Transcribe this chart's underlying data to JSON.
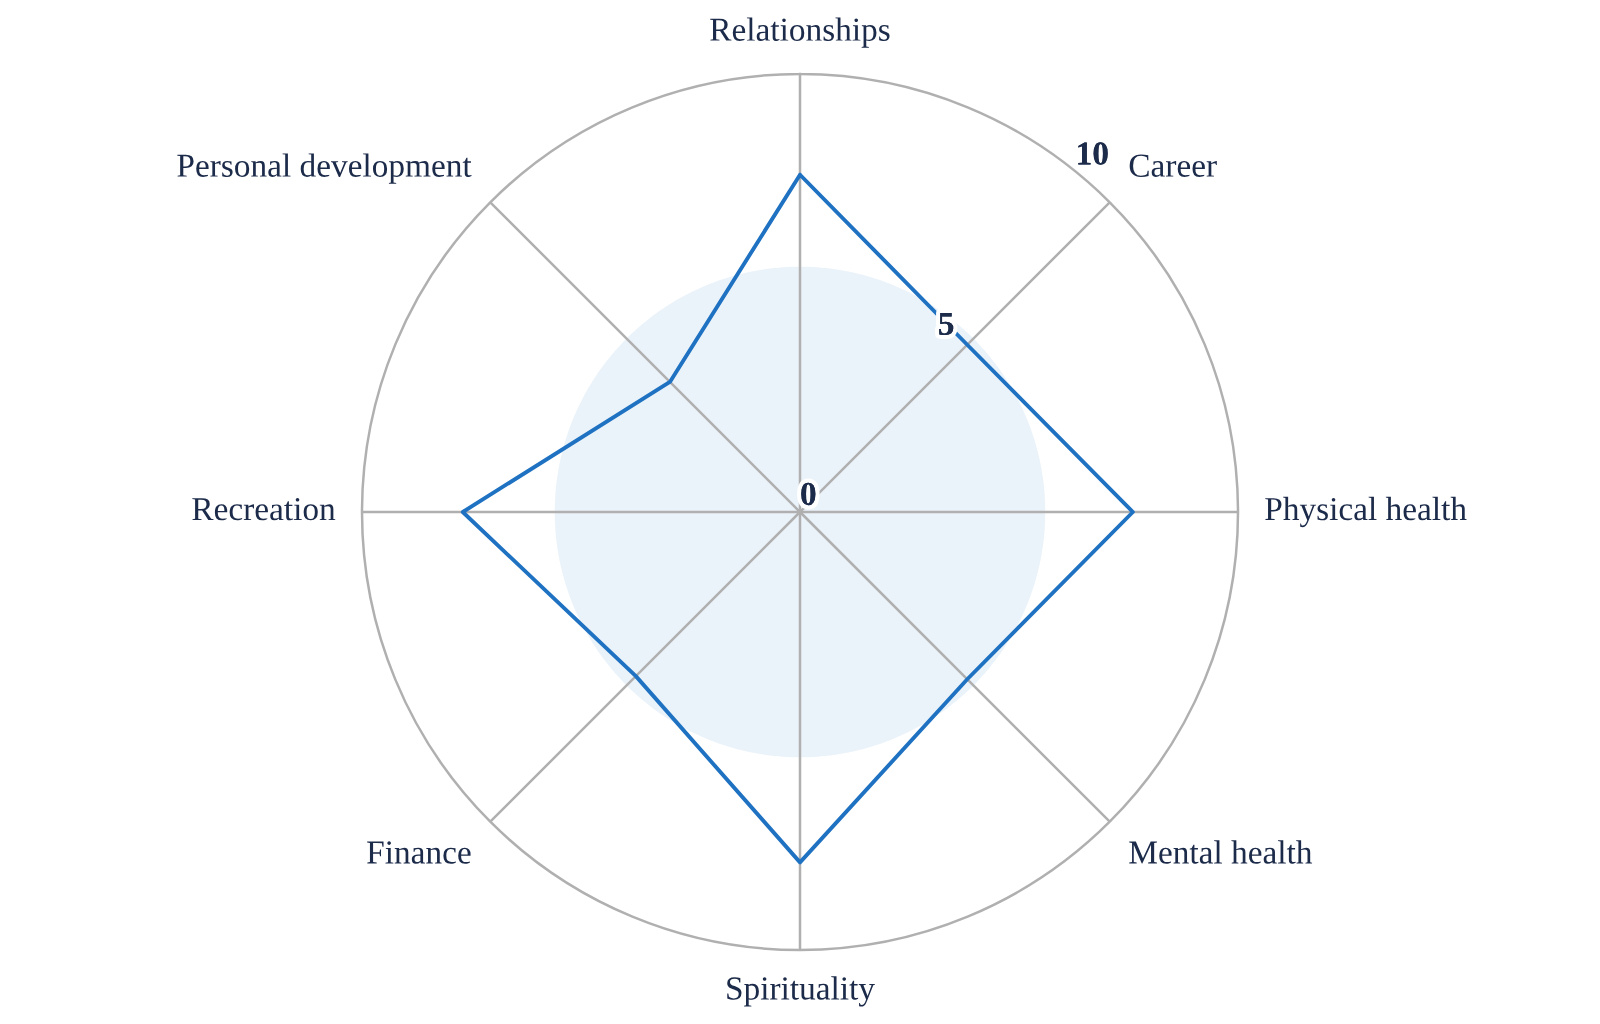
{
  "chart_data": {
    "type": "radar",
    "categories": [
      "Relationships",
      "Career",
      "Physical health",
      "Mental health",
      "Spirituality",
      "Finance",
      "Recreation",
      "Personal development"
    ],
    "series": [
      {
        "color": "#1f72c2",
        "values": [
          7.7,
          5.4,
          7.6,
          5.4,
          8.0,
          5.3,
          7.7,
          4.2
        ]
      }
    ],
    "ylim": [
      0,
      10
    ],
    "yticks": [
      0,
      5,
      10
    ],
    "grid": "x",
    "marker": "none",
    "line_style": "solid"
  }
}
